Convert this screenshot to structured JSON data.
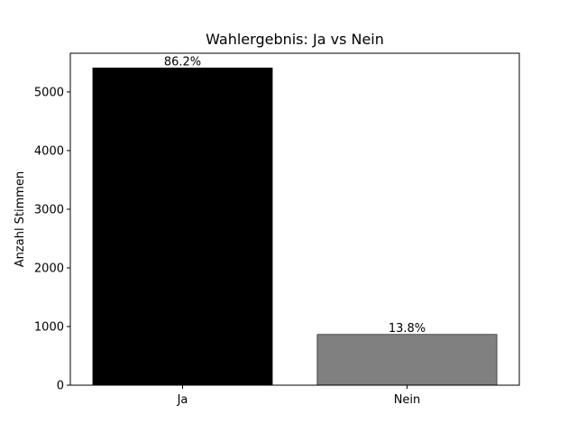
{
  "chart_data": {
    "type": "bar",
    "title": "Wahlergebnis: Ja vs Nein",
    "ylabel": "Anzahl Stimmen",
    "categories": [
      "Ja",
      "Nein"
    ],
    "values": [
      5410,
      865
    ],
    "colors": [
      "#000000",
      "#808080"
    ],
    "annotations": [
      "86.2%",
      "13.8%"
    ],
    "ylim": [
      0,
      5660
    ],
    "yticks": [
      0,
      1000,
      2000,
      3000,
      4000,
      5000
    ],
    "grid": false
  }
}
